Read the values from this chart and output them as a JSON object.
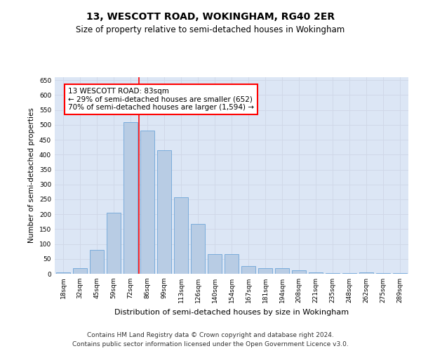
{
  "title": "13, WESCOTT ROAD, WOKINGHAM, RG40 2ER",
  "subtitle": "Size of property relative to semi-detached houses in Wokingham",
  "xlabel": "Distribution of semi-detached houses by size in Wokingham",
  "ylabel": "Number of semi-detached properties",
  "categories": [
    "18sqm",
    "32sqm",
    "45sqm",
    "59sqm",
    "72sqm",
    "86sqm",
    "99sqm",
    "113sqm",
    "126sqm",
    "140sqm",
    "154sqm",
    "167sqm",
    "181sqm",
    "194sqm",
    "208sqm",
    "221sqm",
    "235sqm",
    "248sqm",
    "262sqm",
    "275sqm",
    "289sqm"
  ],
  "values": [
    5,
    20,
    80,
    205,
    510,
    480,
    415,
    258,
    168,
    65,
    65,
    25,
    18,
    18,
    11,
    5,
    3,
    3,
    4,
    2,
    2
  ],
  "bar_color": "#b8cce4",
  "bar_edge_color": "#5b9bd5",
  "grid_color": "#d0d8e8",
  "background_color": "#dce6f5",
  "annotation_title": "13 WESCOTT ROAD: 83sqm",
  "annotation_line1": "← 29% of semi-detached houses are smaller (652)",
  "annotation_line2": "70% of semi-detached houses are larger (1,594) →",
  "annotation_box_color": "white",
  "annotation_box_edge": "red",
  "vline_color": "red",
  "ylim": [
    0,
    660
  ],
  "yticks": [
    0,
    50,
    100,
    150,
    200,
    250,
    300,
    350,
    400,
    450,
    500,
    550,
    600,
    650
  ],
  "footnote1": "Contains HM Land Registry data © Crown copyright and database right 2024.",
  "footnote2": "Contains public sector information licensed under the Open Government Licence v3.0.",
  "title_fontsize": 10,
  "subtitle_fontsize": 8.5,
  "ylabel_fontsize": 7.5,
  "xlabel_fontsize": 8,
  "tick_fontsize": 6.5,
  "annotation_fontsize": 7.5,
  "footnote_fontsize": 6.5,
  "vline_index": 4.5
}
